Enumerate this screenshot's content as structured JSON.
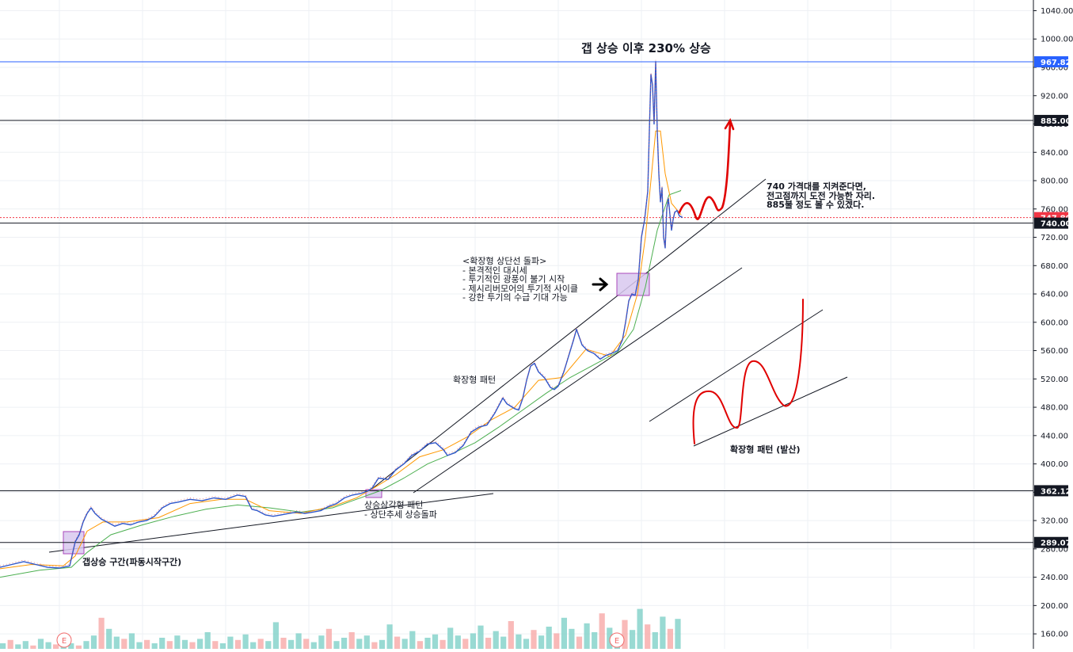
{
  "chart_data": {
    "type": "line",
    "y_axis": {
      "ylim": [
        140,
        1050
      ],
      "ticks": [
        160,
        200,
        240,
        280,
        320,
        360,
        400,
        440,
        480,
        520,
        560,
        600,
        640,
        680,
        720,
        760,
        800,
        840,
        880,
        920,
        960,
        1000,
        1040
      ],
      "tick_labels": [
        "160.00",
        "200.00",
        "240.00",
        "280.00",
        "320.00",
        "360.00",
        "400.00",
        "440.00",
        "480.00",
        "520.00",
        "560.00",
        "600.00",
        "640.00",
        "680.00",
        "720.00",
        "760.00",
        "800.00",
        "840.00",
        "880.00",
        "920.00",
        "960.00",
        "1000.00",
        "1040.00"
      ]
    },
    "grid": true,
    "price_levels": [
      {
        "value": 967.82,
        "label": "967.82",
        "color": "#2962ff"
      },
      {
        "value": 885.0,
        "label": "885.00",
        "color": "#131722"
      },
      {
        "value": 747.8,
        "label": "747.80",
        "color": "#f23645"
      },
      {
        "value": 740.0,
        "label": "740.00",
        "color": "#131722"
      },
      {
        "value": 362.12,
        "label": "362.12",
        "color": "#131722"
      },
      {
        "value": 289.07,
        "label": "289.07",
        "color": "#131722"
      }
    ],
    "price_path": [
      [
        0,
        254
      ],
      [
        15,
        258
      ],
      [
        30,
        262
      ],
      [
        45,
        258
      ],
      [
        60,
        254
      ],
      [
        75,
        253
      ],
      [
        88,
        256
      ],
      [
        95,
        290
      ],
      [
        100,
        300
      ],
      [
        105,
        318
      ],
      [
        110,
        330
      ],
      [
        115,
        338
      ],
      [
        120,
        330
      ],
      [
        128,
        322
      ],
      [
        135,
        318
      ],
      [
        145,
        312
      ],
      [
        155,
        316
      ],
      [
        165,
        314
      ],
      [
        175,
        318
      ],
      [
        185,
        320
      ],
      [
        195,
        326
      ],
      [
        205,
        338
      ],
      [
        215,
        344
      ],
      [
        225,
        346
      ],
      [
        240,
        350
      ],
      [
        255,
        348
      ],
      [
        270,
        352
      ],
      [
        285,
        350
      ],
      [
        300,
        356
      ],
      [
        310,
        354
      ],
      [
        318,
        336
      ],
      [
        325,
        334
      ],
      [
        335,
        328
      ],
      [
        345,
        326
      ],
      [
        355,
        328
      ],
      [
        365,
        330
      ],
      [
        375,
        332
      ],
      [
        385,
        330
      ],
      [
        395,
        332
      ],
      [
        405,
        334
      ],
      [
        415,
        340
      ],
      [
        425,
        344
      ],
      [
        435,
        352
      ],
      [
        445,
        356
      ],
      [
        455,
        358
      ],
      [
        465,
        362
      ],
      [
        470,
        366
      ],
      [
        478,
        380
      ],
      [
        490,
        378
      ],
      [
        500,
        392
      ],
      [
        510,
        400
      ],
      [
        520,
        412
      ],
      [
        530,
        418
      ],
      [
        540,
        428
      ],
      [
        550,
        430
      ],
      [
        560,
        420
      ],
      [
        565,
        412
      ],
      [
        575,
        416
      ],
      [
        585,
        426
      ],
      [
        595,
        445
      ],
      [
        605,
        452
      ],
      [
        615,
        455
      ],
      [
        625,
        472
      ],
      [
        635,
        493
      ],
      [
        640,
        485
      ],
      [
        650,
        478
      ],
      [
        655,
        476
      ],
      [
        660,
        492
      ],
      [
        665,
        518
      ],
      [
        670,
        538
      ],
      [
        675,
        542
      ],
      [
        680,
        530
      ],
      [
        688,
        521
      ],
      [
        695,
        508
      ],
      [
        700,
        505
      ],
      [
        705,
        510
      ],
      [
        712,
        530
      ],
      [
        718,
        552
      ],
      [
        724,
        574
      ],
      [
        728,
        590
      ],
      [
        735,
        568
      ],
      [
        742,
        560
      ],
      [
        750,
        556
      ],
      [
        758,
        548
      ],
      [
        765,
        553
      ],
      [
        772,
        556
      ],
      [
        780,
        560
      ],
      [
        786,
        575
      ],
      [
        790,
        600
      ],
      [
        794,
        630
      ],
      [
        798,
        640
      ],
      [
        802,
        638
      ],
      [
        806,
        660
      ],
      [
        810,
        720
      ],
      [
        814,
        745
      ],
      [
        818,
        785
      ],
      [
        820,
        870
      ],
      [
        822,
        950
      ],
      [
        824,
        935
      ],
      [
        826,
        880
      ],
      [
        828,
        968
      ],
      [
        830,
        870
      ],
      [
        832,
        810
      ],
      [
        834,
        770
      ],
      [
        836,
        790
      ],
      [
        838,
        720
      ],
      [
        840,
        705
      ],
      [
        842,
        760
      ],
      [
        844,
        775
      ],
      [
        846,
        752
      ],
      [
        848,
        730
      ],
      [
        850,
        745
      ],
      [
        852,
        755
      ],
      [
        855,
        758
      ],
      [
        858,
        750
      ],
      [
        862,
        748
      ]
    ],
    "ma_fast_path": [
      [
        0,
        252
      ],
      [
        40,
        258
      ],
      [
        80,
        256
      ],
      [
        95,
        270
      ],
      [
        110,
        305
      ],
      [
        130,
        318
      ],
      [
        160,
        318
      ],
      [
        200,
        324
      ],
      [
        240,
        344
      ],
      [
        280,
        350
      ],
      [
        310,
        350
      ],
      [
        340,
        334
      ],
      [
        380,
        330
      ],
      [
        420,
        340
      ],
      [
        450,
        352
      ],
      [
        475,
        368
      ],
      [
        500,
        385
      ],
      [
        530,
        410
      ],
      [
        560,
        420
      ],
      [
        590,
        438
      ],
      [
        620,
        462
      ],
      [
        650,
        480
      ],
      [
        680,
        518
      ],
      [
        710,
        522
      ],
      [
        740,
        562
      ],
      [
        770,
        552
      ],
      [
        790,
        582
      ],
      [
        805,
        640
      ],
      [
        815,
        720
      ],
      [
        822,
        800
      ],
      [
        828,
        870
      ],
      [
        834,
        870
      ],
      [
        840,
        810
      ],
      [
        848,
        768
      ],
      [
        860,
        752
      ]
    ],
    "ma_slow_path": [
      [
        0,
        240
      ],
      [
        50,
        250
      ],
      [
        90,
        254
      ],
      [
        110,
        275
      ],
      [
        140,
        300
      ],
      [
        180,
        314
      ],
      [
        220,
        326
      ],
      [
        260,
        336
      ],
      [
        300,
        342
      ],
      [
        340,
        338
      ],
      [
        380,
        332
      ],
      [
        420,
        338
      ],
      [
        450,
        350
      ],
      [
        480,
        362
      ],
      [
        510,
        380
      ],
      [
        540,
        400
      ],
      [
        570,
        414
      ],
      [
        600,
        430
      ],
      [
        630,
        452
      ],
      [
        660,
        476
      ],
      [
        690,
        500
      ],
      [
        720,
        522
      ],
      [
        750,
        540
      ],
      [
        780,
        558
      ],
      [
        800,
        590
      ],
      [
        815,
        650
      ],
      [
        830,
        730
      ],
      [
        845,
        780
      ],
      [
        860,
        786
      ]
    ],
    "volume_bars": [
      5,
      8,
      4,
      7,
      3,
      9,
      6,
      4,
      8,
      5,
      3,
      7,
      12,
      28,
      18,
      11,
      9,
      14,
      6,
      8,
      5,
      10,
      7,
      12,
      8,
      6,
      9,
      15,
      7,
      5,
      11,
      8,
      13,
      6,
      9,
      7,
      24,
      10,
      8,
      14,
      9,
      6,
      12,
      18,
      7,
      10,
      15,
      9,
      12,
      6,
      8,
      22,
      11,
      9,
      16,
      7,
      10,
      13,
      8,
      19,
      12,
      9,
      14,
      21,
      10,
      16,
      11,
      25,
      13,
      9,
      17,
      12,
      20,
      14,
      28,
      18,
      11,
      23,
      15,
      32,
      19,
      13,
      26,
      17,
      36,
      22,
      15,
      29,
      18,
      27
    ],
    "annotations": [
      {
        "text": "갭 상승 이후 230% 상승"
      },
      {
        "text": "740 가격대를 지켜준다면,\n전고점까지 도전 가능한 자리.\n885불 정도 볼 수 있겠다."
      },
      {
        "text": "<확장형 상단선 돌파>\n- 본격적인 대시세\n- 투기적인 광풍이 불기 시작\n- 제시리버모어의 투기적 사이클\n- 강한 투기의 수급 기대 가능"
      },
      {
        "text": "확장형 패턴"
      },
      {
        "text": "확장형 패턴 (발산)"
      },
      {
        "text": "상승삼각형 패턴\n- 상단추세 상승돌파"
      },
      {
        "text": "갭상승 구간(파동시작구간)"
      }
    ],
    "earnings_markers": [
      "E",
      "E"
    ]
  }
}
